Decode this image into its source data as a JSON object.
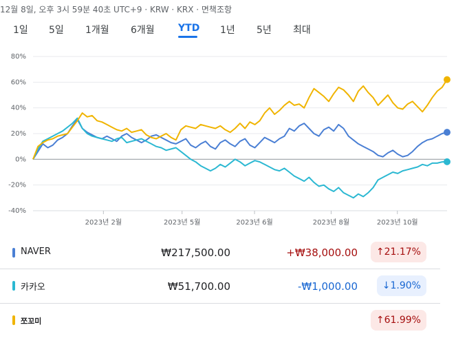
{
  "header": {
    "timestamp_line": "12월 8일, 오후 3시 59분 40초 UTC+9 · KRW · KRX · 면책조항"
  },
  "tabs": [
    {
      "label": "1일",
      "active": false
    },
    {
      "label": "5일",
      "active": false
    },
    {
      "label": "1개월",
      "active": false
    },
    {
      "label": "6개월",
      "active": false
    },
    {
      "label": "YTD",
      "active": true
    },
    {
      "label": "1년",
      "active": false
    },
    {
      "label": "5년",
      "active": false
    },
    {
      "label": "최대",
      "active": false
    }
  ],
  "chart_data": {
    "type": "line",
    "x_ticks": [
      "2023년 2월",
      "2023년 5월",
      "2023년 6월",
      "2023년 8월",
      "2023년 10월"
    ],
    "y_ticks": [
      "80%",
      "60%",
      "40%",
      "20%",
      "0%",
      "-20%",
      "-40%"
    ],
    "ylim": [
      -40,
      80
    ],
    "grid": true,
    "series": [
      {
        "name": "NAVER",
        "color": "#4a7fd4",
        "end_value": 21.17,
        "values": [
          0,
          6,
          12,
          9,
          11,
          15,
          17,
          20,
          26,
          31,
          24,
          21,
          19,
          17,
          16,
          18,
          16,
          14,
          18,
          20,
          17,
          15,
          13,
          15,
          18,
          19,
          17,
          15,
          13,
          12,
          14,
          16,
          11,
          9,
          12,
          14,
          10,
          8,
          13,
          15,
          12,
          10,
          14,
          16,
          11,
          9,
          13,
          17,
          15,
          13,
          16,
          18,
          24,
          22,
          26,
          28,
          24,
          20,
          18,
          23,
          25,
          22,
          27,
          24,
          18,
          15,
          12,
          10,
          8,
          6,
          3,
          2,
          5,
          7,
          4,
          2,
          3,
          6,
          10,
          13,
          15,
          16,
          18,
          20,
          21
        ]
      },
      {
        "name": "카카오",
        "color": "#2bb8d2",
        "end_value": -1.9,
        "values": [
          0,
          8,
          14,
          16,
          18,
          20,
          22,
          25,
          28,
          32,
          24,
          20,
          18,
          17,
          16,
          15,
          14,
          16,
          17,
          13,
          14,
          15,
          16,
          14,
          12,
          10,
          9,
          7,
          8,
          9,
          6,
          3,
          0,
          -2,
          -5,
          -7,
          -9,
          -7,
          -4,
          -6,
          -3,
          0,
          -2,
          -5,
          -3,
          -1,
          -2,
          -4,
          -6,
          -8,
          -9,
          -7,
          -10,
          -13,
          -15,
          -17,
          -14,
          -18,
          -21,
          -20,
          -23,
          -25,
          -22,
          -26,
          -28,
          -30,
          -27,
          -29,
          -26,
          -22,
          -16,
          -14,
          -12,
          -10,
          -11,
          -9,
          -8,
          -7,
          -6,
          -4,
          -5,
          -3,
          -3,
          -2,
          -1.9
        ]
      },
      {
        "name": "쪼꼬미",
        "color": "#f0b400",
        "end_value": 61.99,
        "values": [
          0,
          10,
          13,
          15,
          16,
          18,
          19,
          20,
          25,
          30,
          36,
          33,
          34,
          30,
          29,
          27,
          25,
          23,
          22,
          24,
          21,
          22,
          23,
          19,
          17,
          16,
          18,
          20,
          17,
          15,
          23,
          26,
          25,
          24,
          27,
          26,
          25,
          24,
          26,
          23,
          21,
          24,
          28,
          24,
          29,
          27,
          30,
          36,
          40,
          35,
          38,
          42,
          45,
          42,
          43,
          40,
          48,
          55,
          52,
          49,
          45,
          51,
          56,
          54,
          50,
          45,
          53,
          57,
          52,
          48,
          42,
          46,
          50,
          44,
          40,
          39,
          43,
          45,
          41,
          37,
          42,
          48,
          53,
          56,
          62
        ]
      }
    ]
  },
  "stocks": [
    {
      "name": "NAVER",
      "color": "#4a7fd4",
      "price": "₩217,500.00",
      "change": "+₩38,000.00",
      "change_color": "#a50e0e",
      "pct": "↑21.17%",
      "direction": "up"
    },
    {
      "name": "카카오",
      "color": "#2bb8d2",
      "price": "₩51,700.00",
      "change": "-₩1,000.00",
      "change_color": "#1967d2",
      "pct": "↓1.90%",
      "direction": "down"
    },
    {
      "name": "쪼꼬미",
      "color": "#f0b400",
      "price": "",
      "change": "",
      "change_color": "#202124",
      "pct": "↑61.99%",
      "direction": "up"
    }
  ]
}
